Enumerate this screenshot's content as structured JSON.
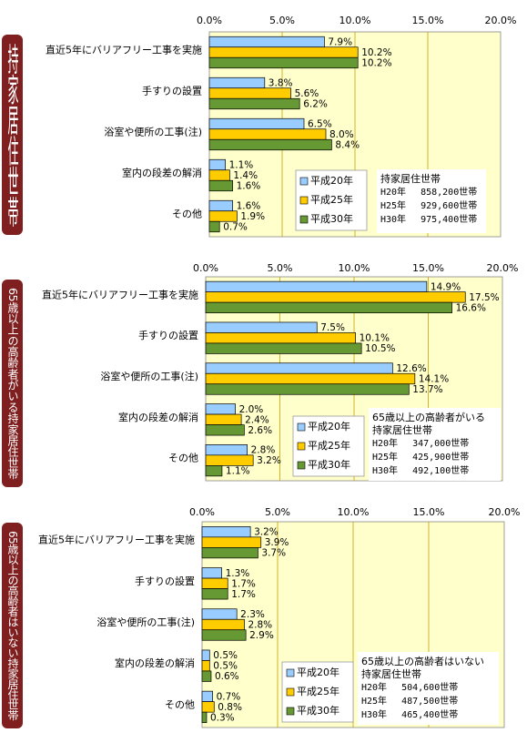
{
  "colors": {
    "s20": "#99ccff",
    "s25": "#ffcc00",
    "s30": "#669933",
    "plot_bg": "#ffffcc",
    "side_bg": "#7f1f1f",
    "grid": "#c8a000"
  },
  "chart_data": [
    {
      "type": "bar",
      "orientation": "horizontal",
      "title": "持家居住世帯",
      "x_ticks": [
        "0.0%",
        "5.0%",
        "10.0%",
        "15.0%",
        "20.0%"
      ],
      "xlim": [
        0,
        20
      ],
      "categories": [
        "直近5年にバリアフリー工事を実施",
        "手すりの設置",
        "浴室や便所の工事(注)",
        "室内の段差の解消",
        "その他"
      ],
      "series": [
        {
          "name": "平成20年",
          "values": [
            7.9,
            3.8,
            6.5,
            1.1,
            1.6
          ],
          "labels": [
            "7.9%",
            "3.8%",
            "6.5%",
            "1.1%",
            "1.6%"
          ]
        },
        {
          "name": "平成25年",
          "values": [
            10.2,
            5.6,
            8.0,
            1.4,
            1.9
          ],
          "labels": [
            "10.2%",
            "5.6%",
            "8.0%",
            "1.4%",
            "1.9%"
          ]
        },
        {
          "name": "平成30年",
          "values": [
            10.2,
            6.2,
            8.4,
            1.6,
            0.7
          ],
          "labels": [
            "10.2%",
            "6.2%",
            "8.4%",
            "1.6%",
            "0.7%"
          ]
        }
      ],
      "info": {
        "lines": [
          "持家居住世帯"
        ],
        "rows": [
          "H20年　 858,200世帯",
          "H25年　 929,600世帯",
          "H30年　 975,400世帯"
        ]
      }
    },
    {
      "type": "bar",
      "orientation": "horizontal",
      "title": "65歳以上の高齢者がいる持家居住世帯",
      "x_ticks": [
        "0.0%",
        "5.0%",
        "10.0%",
        "15.0%",
        "20.0%"
      ],
      "xlim": [
        0,
        20
      ],
      "categories": [
        "直近5年にバリアフリー工事を実施",
        "手すりの設置",
        "浴室や便所の工事(注)",
        "室内の段差の解消",
        "その他"
      ],
      "series": [
        {
          "name": "平成20年",
          "values": [
            14.9,
            7.5,
            12.6,
            2.0,
            2.8
          ],
          "labels": [
            "14.9%",
            "7.5%",
            "12.6%",
            "2.0%",
            "2.8%"
          ]
        },
        {
          "name": "平成25年",
          "values": [
            17.5,
            10.1,
            14.1,
            2.4,
            3.2
          ],
          "labels": [
            "17.5%",
            "10.1%",
            "14.1%",
            "2.4%",
            "3.2%"
          ]
        },
        {
          "name": "平成30年",
          "values": [
            16.6,
            10.5,
            13.7,
            2.6,
            1.1
          ],
          "labels": [
            "16.6%",
            "10.5%",
            "13.7%",
            "2.6%",
            "1.1%"
          ]
        }
      ],
      "info": {
        "lines": [
          "65歳以上の高齢者がいる",
          "持家居住世帯"
        ],
        "rows": [
          "H20年　 347,000世帯",
          "H25年　 425,900世帯",
          "H30年　 492,100世帯"
        ]
      }
    },
    {
      "type": "bar",
      "orientation": "horizontal",
      "title": "65歳以上の高齢者はいない持家居住世帯",
      "x_ticks": [
        "0.0%",
        "5.0%",
        "10.0%",
        "15.0%",
        "20.0%"
      ],
      "xlim": [
        0,
        20
      ],
      "categories": [
        "直近5年にバリアフリー工事を実施",
        "手すりの設置",
        "浴室や便所の工事(注)",
        "室内の段差の解消",
        "その他"
      ],
      "series": [
        {
          "name": "平成20年",
          "values": [
            3.2,
            1.3,
            2.3,
            0.5,
            0.7
          ],
          "labels": [
            "3.2%",
            "1.3%",
            "2.3%",
            "0.5%",
            "0.7%"
          ]
        },
        {
          "name": "平成25年",
          "values": [
            3.9,
            1.7,
            2.8,
            0.5,
            0.8
          ],
          "labels": [
            "3.9%",
            "1.7%",
            "2.8%",
            "0.5%",
            "0.8%"
          ]
        },
        {
          "name": "平成30年",
          "values": [
            3.7,
            1.7,
            2.9,
            0.6,
            0.3
          ],
          "labels": [
            "3.7%",
            "1.7%",
            "2.9%",
            "0.6%",
            "0.3%"
          ]
        }
      ],
      "info": {
        "lines": [
          "65歳以上の高齢者はいない",
          "持家居住世帯"
        ],
        "rows": [
          "H20年　 504,600世帯",
          "H25年　 487,500世帯",
          "H30年　 465,400世帯"
        ]
      }
    }
  ]
}
